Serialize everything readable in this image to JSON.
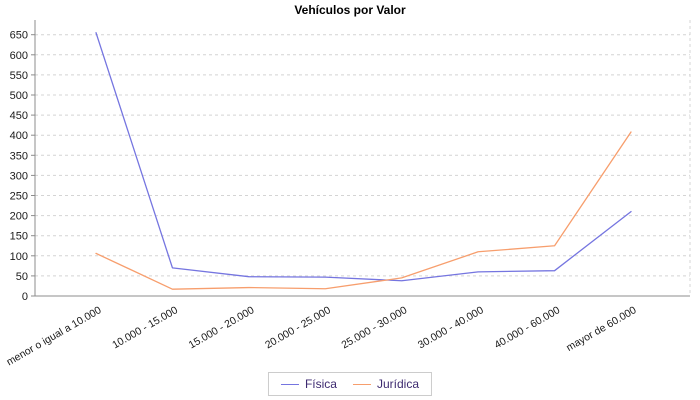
{
  "chart_data": {
    "type": "line",
    "title": "Vehículos por Valor",
    "categories": [
      "menor o igual a 10.000",
      "10.000 - 15.000",
      "15.000 - 20.000",
      "20.000 - 25.000",
      "25.000 - 30.000",
      "30.000 - 40.000",
      "40.000 - 60.000",
      "mayor de 60.000"
    ],
    "series": [
      {
        "name": "Física",
        "color": "#7575e0",
        "values": [
          655,
          70,
          48,
          47,
          38,
          60,
          63,
          210
        ]
      },
      {
        "name": "Jurídica",
        "color": "#f79e6d",
        "values": [
          106,
          17,
          21,
          18,
          45,
          110,
          125,
          408
        ]
      }
    ],
    "xlabel": "",
    "ylabel": "",
    "ylim": [
      0,
      650
    ],
    "y_tick_step": 50,
    "grid": "horizontal-dashed",
    "legend_position": "bottom-center",
    "colors": {
      "gridline": "#d4d4d4",
      "axis": "#8c8c8c",
      "tick_label": "#1a1a1a",
      "legend_text": "#3d2a70",
      "legend_border": "#cccccc",
      "background": "#ffffff"
    }
  }
}
